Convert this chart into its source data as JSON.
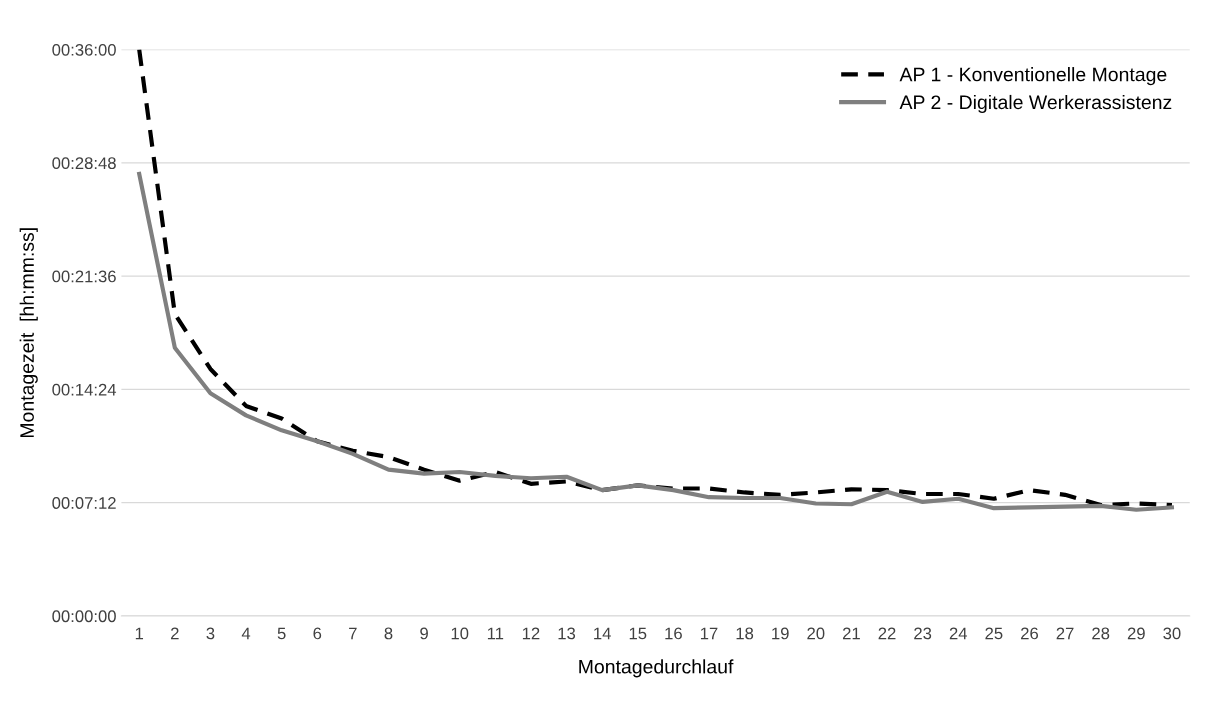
{
  "chart_data": {
    "type": "line",
    "xlabel": "Montagedurchlauf",
    "ylabel": "Montagezeit  [hh:mm:ss]",
    "categories": [
      "1",
      "2",
      "3",
      "4",
      "5",
      "6",
      "7",
      "8",
      "9",
      "10",
      "11",
      "12",
      "13",
      "14",
      "15",
      "16",
      "17",
      "18",
      "19",
      "20",
      "21",
      "22",
      "23",
      "24",
      "25",
      "26",
      "27",
      "28",
      "29",
      "30"
    ],
    "series": [
      {
        "name": "AP 1 - Konventionelle Montage",
        "color": "#000000",
        "line_style": "dashed",
        "values": [
          36.0,
          19.2,
          15.7,
          13.35,
          12.55,
          11.1,
          10.5,
          10.1,
          9.3,
          8.6,
          9.15,
          8.4,
          8.55,
          8.0,
          8.3,
          8.1,
          8.1,
          7.85,
          7.7,
          7.85,
          8.05,
          8.0,
          7.75,
          7.75,
          7.45,
          8.0,
          7.7,
          7.05,
          7.15,
          7.05
        ]
      },
      {
        "name": "AP 2 - Digitale Werkerassistenz",
        "color": "#7f7f7f",
        "line_style": "solid",
        "values": [
          28.1,
          17.05,
          14.15,
          12.75,
          11.8,
          11.1,
          10.3,
          9.3,
          9.05,
          9.15,
          8.9,
          8.75,
          8.85,
          8.0,
          8.3,
          8.0,
          7.55,
          7.5,
          7.5,
          7.15,
          7.1,
          7.9,
          7.25,
          7.45,
          6.85,
          6.9,
          6.95,
          7.0,
          6.75,
          6.9
        ]
      }
    ],
    "ylim": [
      0,
      36
    ],
    "yticks": [
      {
        "value": 0,
        "label": "00:00:00"
      },
      {
        "value": 7.2,
        "label": "00:07:12"
      },
      {
        "value": 14.4,
        "label": "00:14:24"
      },
      {
        "value": 21.6,
        "label": "00:21:36"
      },
      {
        "value": 28.8,
        "label": "00:28:48"
      },
      {
        "value": 36,
        "label": "00:36:00"
      }
    ],
    "grid": "y",
    "legend": "top right",
    "marker": "none"
  }
}
